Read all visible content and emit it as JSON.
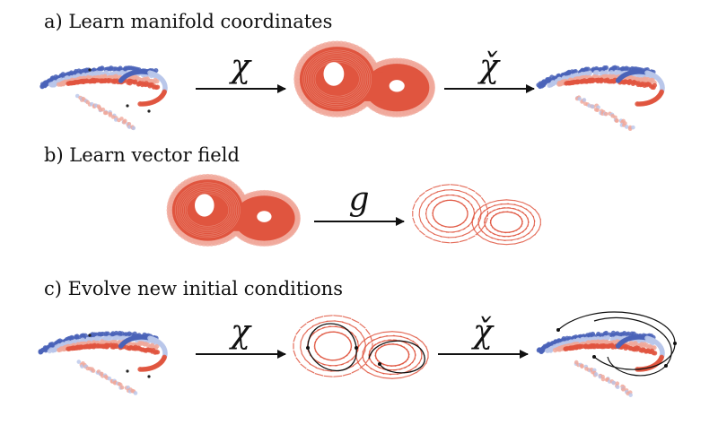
{
  "panels": [
    {
      "label": "a) Learn manifold coordinates",
      "maps": [
        "χ",
        "χ̌"
      ]
    },
    {
      "label": "b) Learn vector field",
      "maps": [
        "g"
      ]
    },
    {
      "label": "c) Evolve new initial conditions",
      "maps": [
        "χ",
        "χ̌"
      ]
    }
  ],
  "colors": {
    "red": "#e0553f",
    "pink": "#f0a89a",
    "blue": "#4a63b8",
    "lightblue": "#b9c6ea",
    "trajectory": "#111111"
  }
}
